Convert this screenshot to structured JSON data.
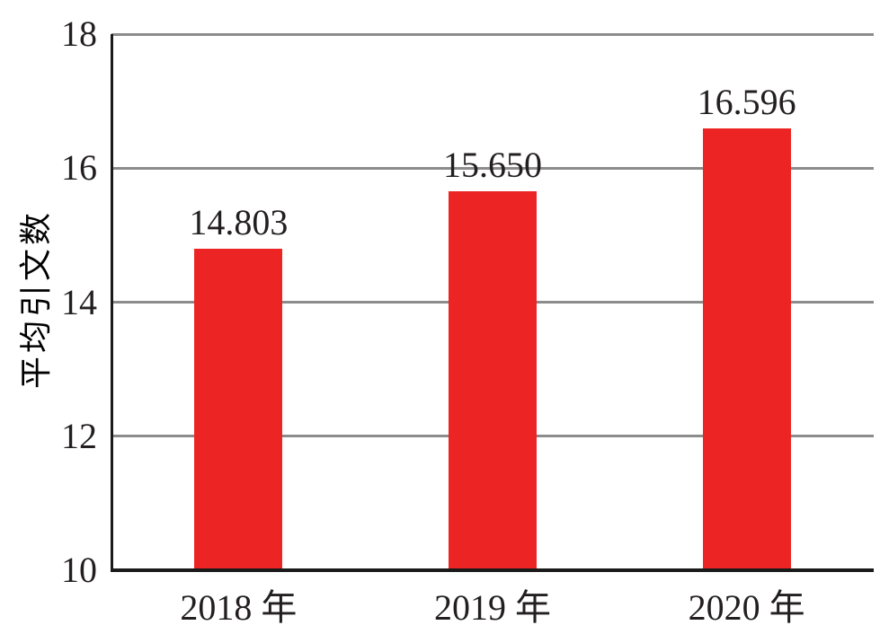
{
  "chart_data": {
    "type": "bar",
    "categories": [
      "2018 年",
      "2019 年",
      "2020 年"
    ],
    "values": [
      14.803,
      15.65,
      16.596
    ],
    "data_labels": [
      "14.803",
      "15.650",
      "16.596"
    ],
    "title": "",
    "xlabel": "",
    "ylabel": "平均引文数",
    "ylim": [
      10,
      18
    ],
    "yticks": [
      10,
      12,
      14,
      16,
      18
    ],
    "ytick_labels": [
      "10",
      "12",
      "14",
      "16",
      "18"
    ],
    "grid": "horizontal",
    "legend": "none",
    "colors": {
      "bar": "#ED2424",
      "grid": "#8C8C8C",
      "axis": "#1A1A1A",
      "text": "#231F20"
    }
  }
}
